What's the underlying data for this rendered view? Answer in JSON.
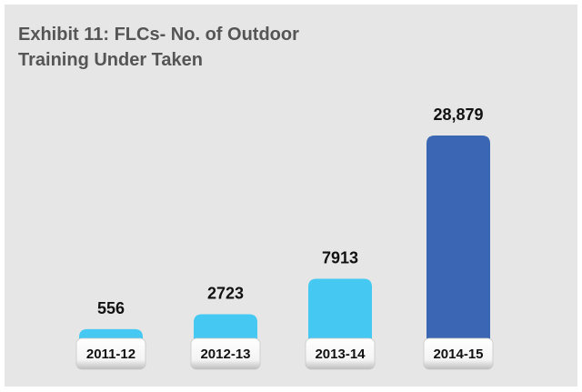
{
  "chart_data": {
    "type": "bar",
    "title": "Exhibit 11: FLCs- No. of Outdoor Training Under Taken",
    "categories": [
      "2011-12",
      "2012-13",
      "2013-14",
      "2014-15"
    ],
    "values": [
      556,
      2723,
      7913,
      28879
    ],
    "value_labels": [
      "556",
      "2723",
      "7913",
      "28,879"
    ],
    "colors": [
      "#45c8f2",
      "#45c8f2",
      "#45c8f2",
      "#3a66b3"
    ]
  }
}
